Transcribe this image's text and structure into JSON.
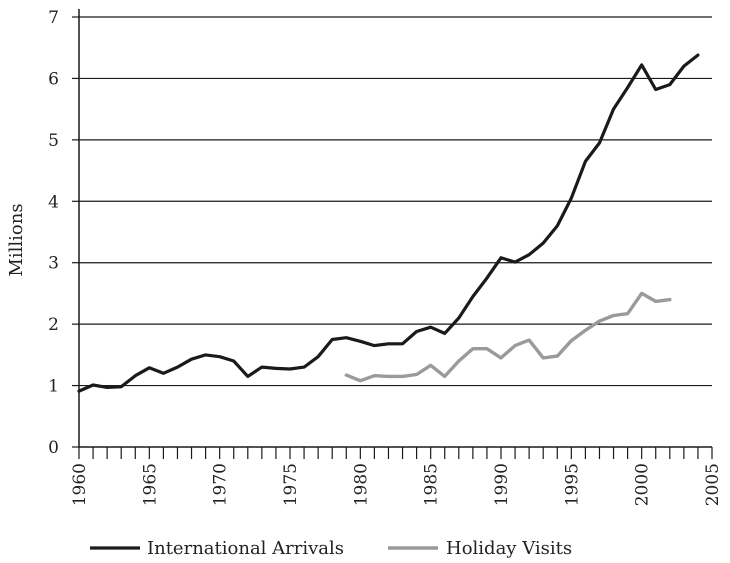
{
  "chart_data": {
    "type": "line",
    "title": "",
    "xlabel": "",
    "ylabel": "Millions",
    "xlim": [
      1960,
      2005
    ],
    "ylim": [
      0,
      7
    ],
    "x_tick_labels": [
      "1960",
      "1965",
      "1970",
      "1975",
      "1980",
      "1985",
      "1990",
      "1995",
      "2000",
      "2005"
    ],
    "y_tick_labels": [
      "0",
      "1",
      "2",
      "3",
      "4",
      "5",
      "6",
      "7"
    ],
    "grid": "horizontal",
    "legend_position": "bottom",
    "series": [
      {
        "name": "International Arrivals",
        "color": "#1a1a1a",
        "x": [
          1960,
          1961,
          1962,
          1963,
          1964,
          1965,
          1966,
          1967,
          1968,
          1969,
          1970,
          1971,
          1972,
          1973,
          1974,
          1975,
          1976,
          1977,
          1978,
          1979,
          1980,
          1981,
          1982,
          1983,
          1984,
          1985,
          1986,
          1987,
          1988,
          1989,
          1990,
          1991,
          1992,
          1993,
          1994,
          1995,
          1996,
          1997,
          1998,
          1999,
          2000,
          2001,
          2002,
          2003,
          2004
        ],
        "values": [
          0.91,
          1.01,
          0.97,
          0.98,
          1.16,
          1.29,
          1.2,
          1.3,
          1.43,
          1.5,
          1.47,
          1.4,
          1.15,
          1.3,
          1.28,
          1.27,
          1.3,
          1.47,
          1.75,
          1.78,
          1.72,
          1.65,
          1.68,
          1.68,
          1.88,
          1.95,
          1.85,
          2.1,
          2.45,
          2.75,
          3.08,
          3.01,
          3.13,
          3.32,
          3.6,
          4.05,
          4.65,
          4.95,
          5.5,
          5.85,
          6.22,
          5.82,
          5.9,
          6.2,
          6.38
        ]
      },
      {
        "name": "Holiday Visits",
        "color": "#9a9a9a",
        "x": [
          1979,
          1980,
          1981,
          1982,
          1983,
          1984,
          1985,
          1986,
          1987,
          1988,
          1989,
          1990,
          1991,
          1992,
          1993,
          1994,
          1995,
          1996,
          1997,
          1998,
          1999,
          2000,
          2001,
          2002
        ],
        "values": [
          1.17,
          1.08,
          1.16,
          1.15,
          1.15,
          1.18,
          1.33,
          1.15,
          1.4,
          1.6,
          1.6,
          1.45,
          1.65,
          1.74,
          1.45,
          1.48,
          1.73,
          1.9,
          2.05,
          2.14,
          2.17,
          2.5,
          2.37,
          2.4
        ]
      }
    ]
  }
}
